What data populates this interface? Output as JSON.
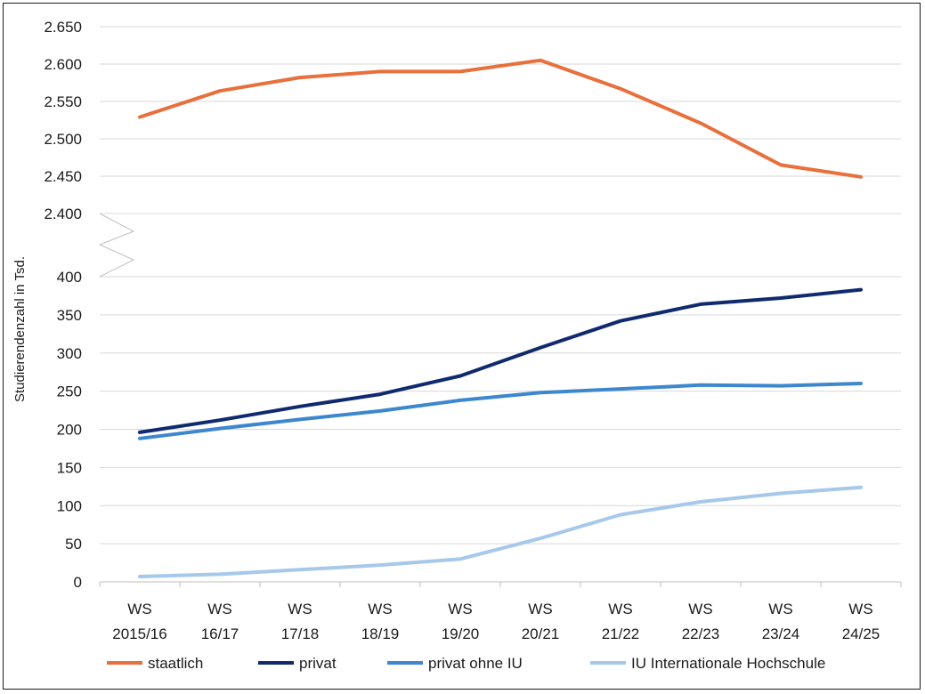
{
  "chart_data": {
    "type": "line",
    "ylabel": "Studierendenzahl in Tsd.",
    "categories": [
      [
        "WS",
        "2015/16"
      ],
      [
        "WS",
        "16/17"
      ],
      [
        "WS",
        "17/18"
      ],
      [
        "WS",
        "18/19"
      ],
      [
        "WS",
        "19/20"
      ],
      [
        "WS",
        "20/21"
      ],
      [
        "WS",
        "21/22"
      ],
      [
        "WS",
        "22/23"
      ],
      [
        "WS",
        "23/24"
      ],
      [
        "WS",
        "24/25"
      ]
    ],
    "y_axis_broken": true,
    "upper_segment": {
      "ylim": [
        2400,
        2650
      ],
      "ticks": [
        2400,
        2450,
        2500,
        2550,
        2600,
        2650
      ],
      "tick_labels": [
        "2.400",
        "2.450",
        "2.500",
        "2.550",
        "2.600",
        "2.650"
      ]
    },
    "lower_segment": {
      "ylim": [
        0,
        400
      ],
      "ticks": [
        0,
        50,
        100,
        150,
        200,
        250,
        300,
        350,
        400
      ],
      "tick_labels": [
        "0",
        "50",
        "100",
        "150",
        "200",
        "250",
        "300",
        "350",
        "400"
      ]
    },
    "grid": true,
    "legend_position": "bottom",
    "series": [
      {
        "name": "staatlich",
        "color": "#e8703c",
        "segment": "upper",
        "values": [
          2529,
          2564,
          2582,
          2590,
          2590,
          2605,
          2567,
          2521,
          2465,
          2449
        ]
      },
      {
        "name": "privat",
        "color": "#0f2a6e",
        "segment": "lower",
        "values": [
          196,
          212,
          230,
          246,
          270,
          307,
          342,
          364,
          372,
          383
        ]
      },
      {
        "name": "privat ohne IU",
        "color": "#3d87cf",
        "segment": "lower",
        "values": [
          188,
          201,
          213,
          224,
          238,
          248,
          253,
          258,
          257,
          260
        ]
      },
      {
        "name": "IU Internationale Hochschule",
        "color": "#a6c8ea",
        "segment": "lower",
        "values": [
          7,
          10,
          16,
          22,
          30,
          57,
          88,
          105,
          116,
          124
        ]
      }
    ]
  }
}
